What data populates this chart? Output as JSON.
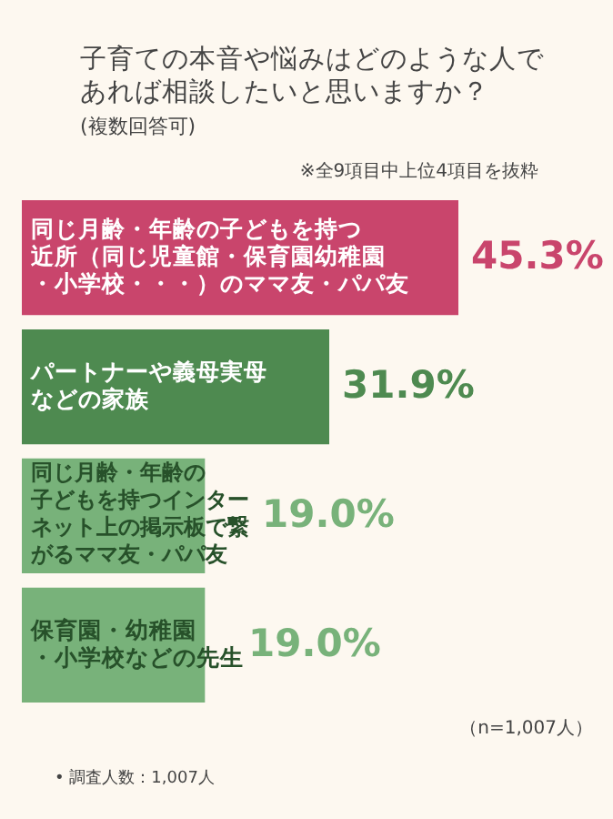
{
  "chart_data": {
    "type": "bar",
    "orientation": "horizontal",
    "title": "子育ての本音や悩みはどのような人であれば相談したいと思いますか？",
    "subtitle": "(複数回答可)",
    "categories": [
      "同じ月齢・年齢の子どもを持つ近所（同じ児童館・保育園幼稚園・小学校・・・）のママ友・パパ友",
      "パートナーや義母実母などの家族",
      "同じ月齢・年齢の子どもを持つインターネット上の掲示板で繋がるママ友・パパ友",
      "保育園・幼稚園・小学校などの先生"
    ],
    "values": [
      45.3,
      31.9,
      19.0,
      19.0
    ],
    "colors": [
      "#c9456c",
      "#4e8a50",
      "#78b27a",
      "#78b27a"
    ],
    "value_labels": [
      "45.3%",
      "31.9%",
      "19.0%",
      "19.0%"
    ],
    "annotations": [
      "※全9項目中上位4項目を抜粋",
      "（n=1,007人）",
      "• 調査人数：1,007人"
    ]
  }
}
